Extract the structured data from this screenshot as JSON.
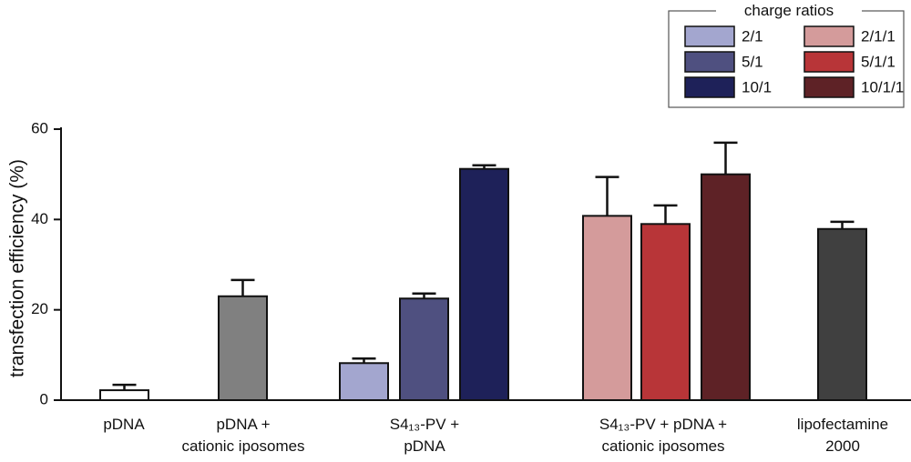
{
  "chart_data": {
    "type": "bar",
    "title": "",
    "xlabel": "",
    "ylabel": "transfection efficiency (%)",
    "ylim": [
      0,
      60
    ],
    "yticks": [
      0,
      20,
      40,
      60
    ],
    "grid": false,
    "legend": {
      "title": "charge ratios",
      "placement": "top-right",
      "entries": [
        {
          "label": "2/1",
          "color": "#A3A6CF"
        },
        {
          "label": "5/1",
          "color": "#4F5080"
        },
        {
          "label": "10/1",
          "color": "#1E2159"
        },
        {
          "label": "2/1/1",
          "color": "#D49B9B"
        },
        {
          "label": "5/1/1",
          "color": "#B83538"
        },
        {
          "label": "10/1/1",
          "color": "#5E2226"
        }
      ]
    },
    "groups": [
      {
        "label_lines": [
          "pDNA"
        ],
        "center_x": 136
      },
      {
        "label_lines": [
          "pDNA +",
          "cationic iposomes"
        ],
        "center_x": 267
      },
      {
        "label_lines": [
          "S4₁₃-PV +",
          "pDNA"
        ],
        "center_x": 466
      },
      {
        "label_lines": [
          "S4₁₃-PV + pDNA +",
          "cationic iposomes"
        ],
        "center_x": 728
      },
      {
        "label_lines": [
          "lipofectamine",
          "2000"
        ],
        "center_x": 925
      }
    ],
    "bars": [
      {
        "group": "pDNA",
        "series": "pDNA",
        "value": 2.2,
        "error": 1.2,
        "color": "#FFFFFF"
      },
      {
        "group": "pDNA + cationic iposomes",
        "series": "cationic liposomes",
        "value": 23.0,
        "error": 3.6,
        "color": "#808080"
      },
      {
        "group": "S4₁₃-PV + pDNA",
        "series": "2/1",
        "value": 8.2,
        "error": 1.0,
        "color": "#A3A6CF"
      },
      {
        "group": "S4₁₃-PV + pDNA",
        "series": "5/1",
        "value": 22.5,
        "error": 1.1,
        "color": "#4F5080"
      },
      {
        "group": "S4₁₃-PV + pDNA",
        "series": "10/1",
        "value": 51.2,
        "error": 0.8,
        "color": "#1E2159"
      },
      {
        "group": "S4₁₃-PV + pDNA + cationic iposomes",
        "series": "2/1/1",
        "value": 40.8,
        "error": 8.6,
        "color": "#D49B9B"
      },
      {
        "group": "S4₁₃-PV + pDNA + cationic iposomes",
        "series": "5/1/1",
        "value": 39.0,
        "error": 4.1,
        "color": "#B83538"
      },
      {
        "group": "S4₁₃-PV + pDNA + cationic iposomes",
        "series": "10/1/1",
        "value": 50.0,
        "error": 7.0,
        "color": "#5E2226"
      },
      {
        "group": "lipofectamine 2000",
        "series": "lipofectamine 2000",
        "value": 37.9,
        "error": 1.6,
        "color": "#404040"
      }
    ]
  }
}
